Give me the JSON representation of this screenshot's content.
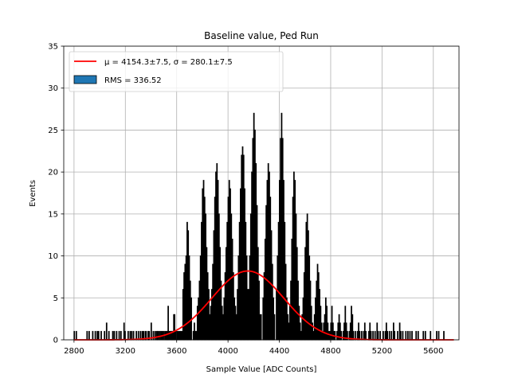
{
  "chart_data": {
    "type": "bar",
    "title": "Baseline value, Ped Run",
    "xlabel": "Sample Value [ADC Counts]",
    "ylabel": "Events",
    "xlim": [
      2720,
      5800
    ],
    "ylim": [
      0,
      35
    ],
    "xticks": [
      2800,
      3200,
      3600,
      4000,
      4400,
      4800,
      5200,
      5600
    ],
    "yticks": [
      0,
      5,
      10,
      15,
      20,
      25,
      30,
      35
    ],
    "grid": true,
    "legend_position": "top-left",
    "legend": [
      {
        "label": "μ = 4154.3±7.5, σ = 280.1±7.5",
        "kind": "line",
        "color": "#ff0000"
      },
      {
        "label": "RMS = 336.52",
        "kind": "patch",
        "color": "#1f77b4"
      }
    ],
    "series": [
      {
        "name": "RMS = 336.52",
        "kind": "histogram",
        "color": "#1f77b4",
        "edge_color": "#000000",
        "bin_width": 4,
        "bins": [
          [
            2800,
            1
          ],
          [
            2816,
            1
          ],
          [
            2900,
            1
          ],
          [
            2916,
            1
          ],
          [
            2944,
            1
          ],
          [
            2964,
            1
          ],
          [
            2980,
            1
          ],
          [
            2990,
            1
          ],
          [
            3010,
            1
          ],
          [
            3036,
            1
          ],
          [
            3052,
            2
          ],
          [
            3070,
            1
          ],
          [
            3100,
            1
          ],
          [
            3112,
            1
          ],
          [
            3130,
            1
          ],
          [
            3150,
            1
          ],
          [
            3164,
            1
          ],
          [
            3188,
            2
          ],
          [
            3196,
            1
          ],
          [
            3220,
            1
          ],
          [
            3236,
            1
          ],
          [
            3248,
            1
          ],
          [
            3262,
            1
          ],
          [
            3284,
            1
          ],
          [
            3300,
            1
          ],
          [
            3316,
            1
          ],
          [
            3330,
            1
          ],
          [
            3340,
            1
          ],
          [
            3354,
            1
          ],
          [
            3360,
            1
          ],
          [
            3376,
            1
          ],
          [
            3384,
            1
          ],
          [
            3400,
            2
          ],
          [
            3416,
            1
          ],
          [
            3430,
            1
          ],
          [
            3442,
            1
          ],
          [
            3450,
            1
          ],
          [
            3460,
            1
          ],
          [
            3470,
            1
          ],
          [
            3480,
            1
          ],
          [
            3490,
            1
          ],
          [
            3500,
            1
          ],
          [
            3510,
            1
          ],
          [
            3518,
            1
          ],
          [
            3526,
            1
          ],
          [
            3532,
            4
          ],
          [
            3540,
            1
          ],
          [
            3548,
            1
          ],
          [
            3556,
            1
          ],
          [
            3562,
            1
          ],
          [
            3568,
            1
          ],
          [
            3576,
            3
          ],
          [
            3582,
            3
          ],
          [
            3590,
            1
          ],
          [
            3600,
            1
          ],
          [
            3608,
            1
          ],
          [
            3616,
            1
          ],
          [
            3624,
            1
          ],
          [
            3632,
            1
          ],
          [
            3640,
            1
          ],
          [
            3648,
            6
          ],
          [
            3656,
            8
          ],
          [
            3664,
            9
          ],
          [
            3672,
            10
          ],
          [
            3680,
            14
          ],
          [
            3688,
            13
          ],
          [
            3696,
            10
          ],
          [
            3704,
            7
          ],
          [
            3712,
            5
          ],
          [
            3728,
            1
          ],
          [
            3736,
            2
          ],
          [
            3744,
            1
          ],
          [
            3752,
            1
          ],
          [
            3760,
            4
          ],
          [
            3768,
            5
          ],
          [
            3776,
            7
          ],
          [
            3784,
            10
          ],
          [
            3792,
            14
          ],
          [
            3800,
            18
          ],
          [
            3808,
            19
          ],
          [
            3816,
            17
          ],
          [
            3824,
            15
          ],
          [
            3832,
            11
          ],
          [
            3840,
            8
          ],
          [
            3848,
            6
          ],
          [
            3856,
            3
          ],
          [
            3864,
            4
          ],
          [
            3872,
            6
          ],
          [
            3880,
            9
          ],
          [
            3888,
            13
          ],
          [
            3896,
            17
          ],
          [
            3904,
            20
          ],
          [
            3912,
            21
          ],
          [
            3920,
            19
          ],
          [
            3928,
            15
          ],
          [
            3936,
            11
          ],
          [
            3944,
            7
          ],
          [
            3952,
            4
          ],
          [
            3960,
            3
          ],
          [
            3968,
            5
          ],
          [
            3976,
            8
          ],
          [
            3984,
            11
          ],
          [
            3992,
            14
          ],
          [
            4000,
            17
          ],
          [
            4008,
            19
          ],
          [
            4016,
            18
          ],
          [
            4024,
            15
          ],
          [
            4032,
            12
          ],
          [
            4040,
            8
          ],
          [
            4048,
            5
          ],
          [
            4056,
            4
          ],
          [
            4064,
            3
          ],
          [
            4072,
            6
          ],
          [
            4080,
            10
          ],
          [
            4088,
            14
          ],
          [
            4096,
            18
          ],
          [
            4104,
            22
          ],
          [
            4112,
            23
          ],
          [
            4120,
            22
          ],
          [
            4128,
            18
          ],
          [
            4136,
            14
          ],
          [
            4144,
            10
          ],
          [
            4152,
            6
          ],
          [
            4160,
            6
          ],
          [
            4168,
            10
          ],
          [
            4176,
            15
          ],
          [
            4184,
            20
          ],
          [
            4192,
            24
          ],
          [
            4200,
            27
          ],
          [
            4208,
            25
          ],
          [
            4216,
            21
          ],
          [
            4224,
            16
          ],
          [
            4232,
            11
          ],
          [
            4240,
            7
          ],
          [
            4248,
            3
          ],
          [
            4256,
            3
          ],
          [
            4272,
            5
          ],
          [
            4280,
            8
          ],
          [
            4288,
            12
          ],
          [
            4296,
            16
          ],
          [
            4304,
            19
          ],
          [
            4312,
            21
          ],
          [
            4320,
            20
          ],
          [
            4328,
            17
          ],
          [
            4336,
            13
          ],
          [
            4344,
            9
          ],
          [
            4352,
            5
          ],
          [
            4360,
            3
          ],
          [
            4376,
            6
          ],
          [
            4384,
            10
          ],
          [
            4392,
            14
          ],
          [
            4400,
            19
          ],
          [
            4408,
            24
          ],
          [
            4416,
            27
          ],
          [
            4424,
            24
          ],
          [
            4432,
            19
          ],
          [
            4440,
            14
          ],
          [
            4448,
            9
          ],
          [
            4456,
            5
          ],
          [
            4464,
            3
          ],
          [
            4472,
            2
          ],
          [
            4480,
            4
          ],
          [
            4488,
            7
          ],
          [
            4496,
            12
          ],
          [
            4504,
            17
          ],
          [
            4512,
            20
          ],
          [
            4520,
            19
          ],
          [
            4528,
            15
          ],
          [
            4536,
            11
          ],
          [
            4544,
            7
          ],
          [
            4552,
            4
          ],
          [
            4560,
            2
          ],
          [
            4568,
            1
          ],
          [
            4576,
            3
          ],
          [
            4584,
            5
          ],
          [
            4592,
            8
          ],
          [
            4600,
            11
          ],
          [
            4608,
            14
          ],
          [
            4616,
            15
          ],
          [
            4624,
            13
          ],
          [
            4632,
            10
          ],
          [
            4640,
            7
          ],
          [
            4648,
            4
          ],
          [
            4656,
            2
          ],
          [
            4664,
            1
          ],
          [
            4672,
            3
          ],
          [
            4680,
            5
          ],
          [
            4688,
            7
          ],
          [
            4696,
            9
          ],
          [
            4704,
            8
          ],
          [
            4712,
            6
          ],
          [
            4720,
            4
          ],
          [
            4728,
            2
          ],
          [
            4736,
            1
          ],
          [
            4744,
            2
          ],
          [
            4752,
            3
          ],
          [
            4760,
            5
          ],
          [
            4768,
            4
          ],
          [
            4776,
            2
          ],
          [
            4784,
            1
          ],
          [
            4792,
            1
          ],
          [
            4800,
            2
          ],
          [
            4808,
            4
          ],
          [
            4816,
            2
          ],
          [
            4824,
            1
          ],
          [
            4832,
            1
          ],
          [
            4848,
            1
          ],
          [
            4856,
            2
          ],
          [
            4864,
            3
          ],
          [
            4872,
            2
          ],
          [
            4880,
            1
          ],
          [
            4896,
            1
          ],
          [
            4904,
            2
          ],
          [
            4912,
            4
          ],
          [
            4920,
            2
          ],
          [
            4928,
            1
          ],
          [
            4944,
            1
          ],
          [
            4952,
            2
          ],
          [
            4960,
            4
          ],
          [
            4968,
            3
          ],
          [
            4976,
            1
          ],
          [
            4992,
            1
          ],
          [
            5008,
            1
          ],
          [
            5016,
            2
          ],
          [
            5024,
            1
          ],
          [
            5040,
            1
          ],
          [
            5056,
            1
          ],
          [
            5064,
            2
          ],
          [
            5072,
            1
          ],
          [
            5096,
            1
          ],
          [
            5104,
            2
          ],
          [
            5112,
            1
          ],
          [
            5128,
            1
          ],
          [
            5144,
            1
          ],
          [
            5160,
            2
          ],
          [
            5168,
            1
          ],
          [
            5184,
            1
          ],
          [
            5208,
            1
          ],
          [
            5224,
            1
          ],
          [
            5232,
            2
          ],
          [
            5240,
            1
          ],
          [
            5256,
            1
          ],
          [
            5272,
            1
          ],
          [
            5288,
            2
          ],
          [
            5296,
            1
          ],
          [
            5320,
            1
          ],
          [
            5336,
            2
          ],
          [
            5344,
            1
          ],
          [
            5360,
            1
          ],
          [
            5384,
            1
          ],
          [
            5400,
            1
          ],
          [
            5416,
            1
          ],
          [
            5432,
            1
          ],
          [
            5464,
            1
          ],
          [
            5480,
            1
          ],
          [
            5520,
            1
          ],
          [
            5536,
            1
          ],
          [
            5576,
            1
          ],
          [
            5624,
            1
          ],
          [
            5640,
            1
          ],
          [
            5680,
            1
          ]
        ]
      },
      {
        "name": "μ = 4154.3±7.5, σ = 280.1±7.5",
        "kind": "line",
        "color": "#ff0000",
        "x_range": [
          2800,
          5760
        ],
        "mu": 4154.3,
        "sigma": 280.1,
        "amplitude": 8.2
      }
    ]
  }
}
